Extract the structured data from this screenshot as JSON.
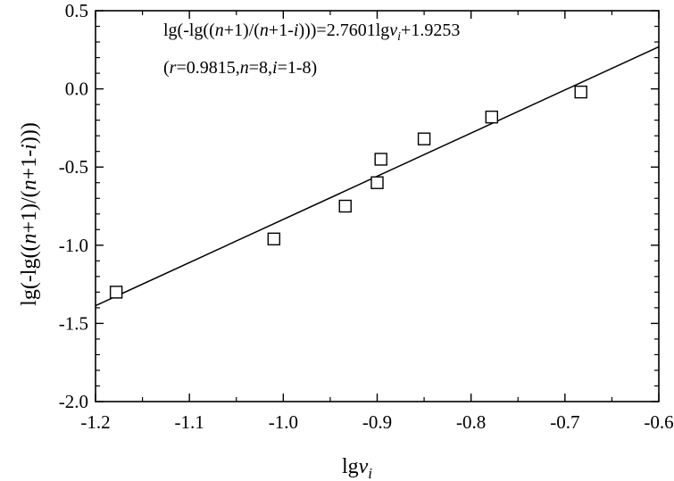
{
  "chart_data": {
    "type": "scatter",
    "title": "",
    "xlabel": "lgv_i",
    "ylabel": "lg(-lg((n+1)/(n+1-i)))",
    "xlim": [
      -1.2,
      -0.6
    ],
    "ylim": [
      -2.0,
      0.5
    ],
    "x_ticks": [
      -1.2,
      -1.1,
      -1.0,
      -0.9,
      -0.8,
      -0.7,
      -0.6
    ],
    "y_ticks": [
      -2.0,
      -1.5,
      -1.0,
      -0.5,
      0.0,
      0.5
    ],
    "x_tick_labels": [
      "-1.2",
      "-1.1",
      "-1.0",
      "-0.9",
      "-0.8",
      "-0.7",
      "-0.6"
    ],
    "y_tick_labels": [
      "-2.0",
      "-1.5",
      "-1.0",
      "-0.5",
      "0.0",
      "0.5"
    ],
    "grid": false,
    "marker": "open-square",
    "points": [
      {
        "x": -1.178,
        "y": -1.3
      },
      {
        "x": -1.01,
        "y": -0.96
      },
      {
        "x": -0.934,
        "y": -0.75
      },
      {
        "x": -0.9,
        "y": -0.6
      },
      {
        "x": -0.896,
        "y": -0.45
      },
      {
        "x": -0.85,
        "y": -0.32
      },
      {
        "x": -0.778,
        "y": -0.18
      },
      {
        "x": -0.683,
        "y": -0.02
      }
    ],
    "fit": {
      "slope": 2.7601,
      "intercept": 1.9253,
      "x_range": [
        -1.2,
        -0.6
      ]
    },
    "annotation": {
      "line1": "lg(-lg((n+1)/(n+1-i)))=2.7601lgvi+1.9253",
      "line2": "(r=0.9815,n=8,i=1-8)"
    }
  }
}
